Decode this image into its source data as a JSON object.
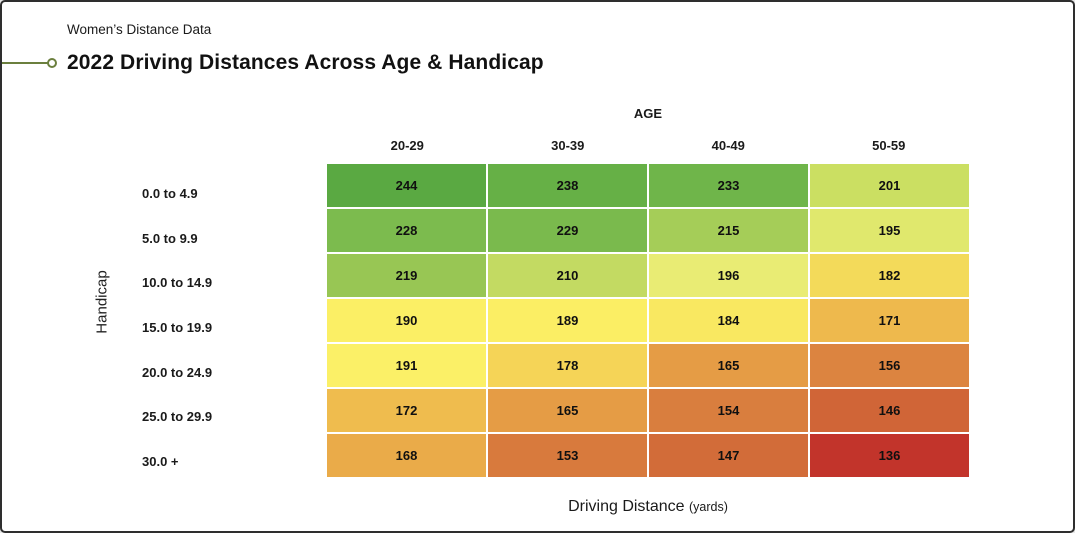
{
  "header": {
    "subtitle": "Women’s Distance Data",
    "title": "2022 Driving Distances Across Age & Handicap"
  },
  "decor": {
    "leader_color": "#6b7f3e",
    "page_border_color": "#2e2e2e"
  },
  "chart_data": {
    "type": "heatmap",
    "title": "2022 Driving Distances Across Age & Handicap",
    "subtitle": "Women's Distance Data",
    "x_axis_title": "AGE",
    "y_axis_title": "Handicap",
    "value_label": "Driving Distance",
    "value_units": "(yards)",
    "columns": [
      "20-29",
      "30-39",
      "40-49",
      "50-59"
    ],
    "rows": [
      "0.0 to 4.9",
      "5.0 to 9.9",
      "10.0 to 14.9",
      "15.0 to 19.9",
      "20.0 to 24.9",
      "25.0 to 29.9",
      "30.0 +"
    ],
    "values": [
      [
        244,
        238,
        233,
        201
      ],
      [
        228,
        229,
        215,
        195
      ],
      [
        219,
        210,
        196,
        182
      ],
      [
        190,
        189,
        184,
        171
      ],
      [
        191,
        178,
        165,
        156
      ],
      [
        172,
        165,
        154,
        146
      ],
      [
        168,
        153,
        147,
        136
      ]
    ],
    "cell_colors": [
      [
        "#5aa942",
        "#66b046",
        "#6fb54a",
        "#cbdf62"
      ],
      [
        "#7cbb4e",
        "#7aba4d",
        "#a5cd58",
        "#e0e86d"
      ],
      [
        "#98c654",
        "#c3da62",
        "#e9ec74",
        "#f3da5a"
      ],
      [
        "#fbef65",
        "#fbee64",
        "#f9e861",
        "#eeb94d"
      ],
      [
        "#fbf067",
        "#f5d457",
        "#e59c45",
        "#dc8440"
      ],
      [
        "#efbc4e",
        "#e59c45",
        "#d97e3e",
        "#d06537"
      ],
      [
        "#eaab49",
        "#d87a3d",
        "#d26c39",
        "#c2342b"
      ]
    ],
    "value_range": [
      136,
      244
    ],
    "colormap": "red-yellow-green (low to high)",
    "legend": "none",
    "grid_gap_color": "#ffffff"
  }
}
